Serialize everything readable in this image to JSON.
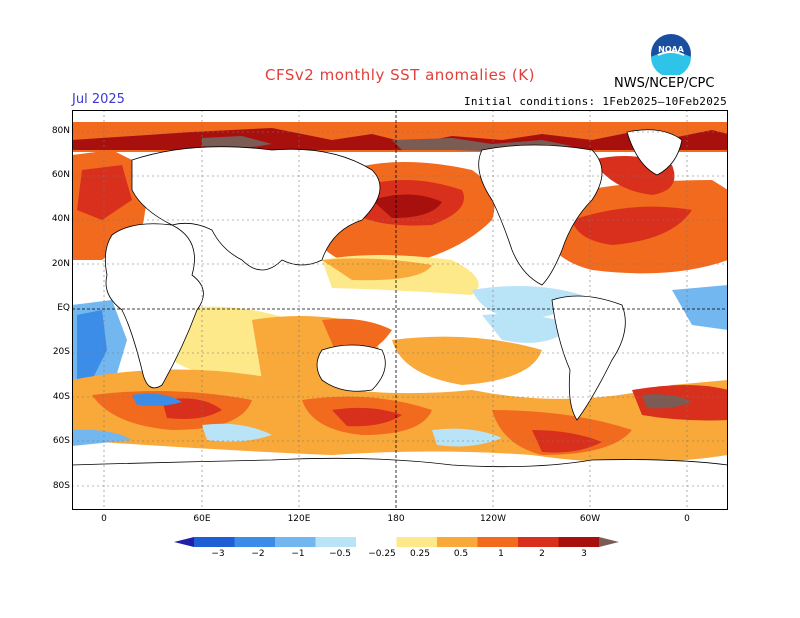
{
  "header": {
    "title": "CFSv2 monthly SST anomalies (K)",
    "month": "Jul 2025",
    "initial_conditions": "Initial conditions: 1Feb2025–10Feb2025",
    "org": "NWS/NCEP/CPC",
    "logo_text": "NOAA"
  },
  "map": {
    "lat_labels": [
      "80N",
      "60N",
      "40N",
      "20N",
      "EQ",
      "20S",
      "40S",
      "60S",
      "80S"
    ],
    "lon_labels": [
      "0",
      "60E",
      "120E",
      "180",
      "120W",
      "60W",
      "0"
    ]
  },
  "colorbar": {
    "labels": [
      "−3",
      "−2",
      "−1",
      "−0.5",
      "−0.25",
      "0.25",
      "0.5",
      "1",
      "2",
      "3"
    ],
    "colors": [
      "#1f1fa8",
      "#1f5fd6",
      "#3b8de8",
      "#73b7f0",
      "#b9e3f7",
      "#ffffff",
      "#fde98a",
      "#f9a83a",
      "#f26a1e",
      "#d8301c",
      "#a8100e",
      "#7a5c55"
    ]
  }
}
